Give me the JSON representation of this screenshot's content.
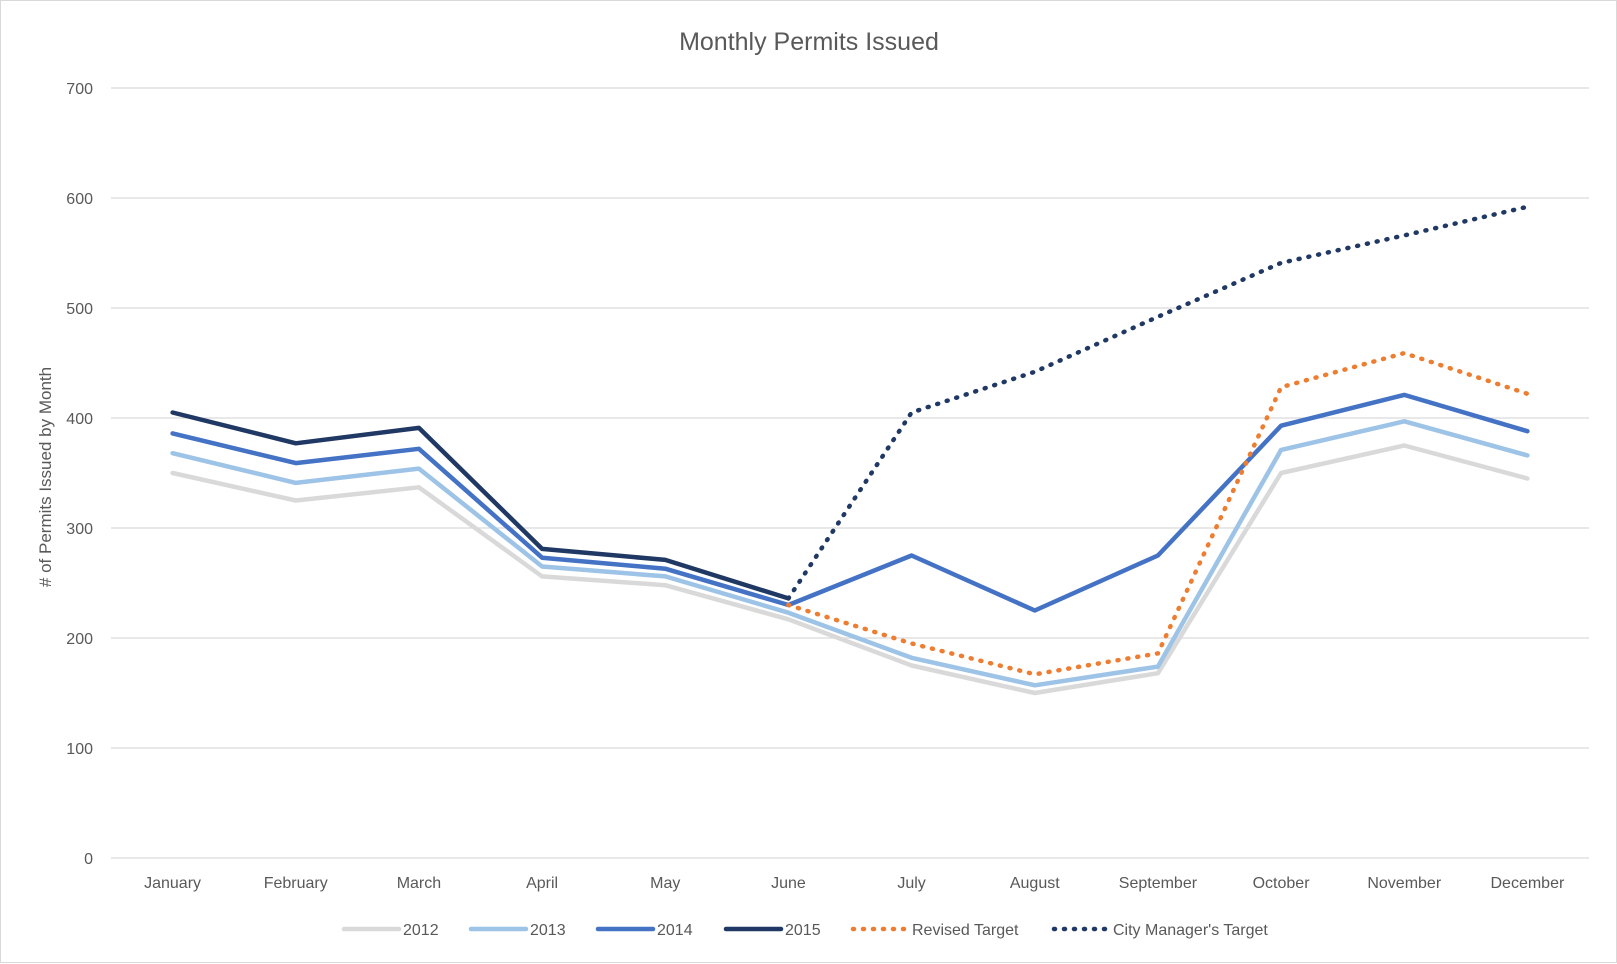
{
  "chart_data": {
    "type": "line",
    "title": "Monthly Permits Issued",
    "xlabel": "",
    "ylabel": "# of Permits Issued by Month",
    "ylim": [
      0,
      700
    ],
    "yticks": [
      0,
      100,
      200,
      300,
      400,
      500,
      600,
      700
    ],
    "grid": true,
    "legend_position": "bottom",
    "categories": [
      "January",
      "February",
      "March",
      "April",
      "May",
      "June",
      "July",
      "August",
      "September",
      "October",
      "November",
      "December"
    ],
    "series": [
      {
        "name": "2012",
        "color": "#d9d9d9",
        "style": "solid",
        "values": [
          350,
          325,
          337,
          256,
          248,
          217,
          175,
          150,
          168,
          350,
          375,
          345
        ]
      },
      {
        "name": "2013",
        "color": "#9dc3e6",
        "style": "solid",
        "values": [
          368,
          341,
          354,
          265,
          256,
          223,
          182,
          157,
          174,
          371,
          397,
          366
        ]
      },
      {
        "name": "2014",
        "color": "#4472c4",
        "style": "solid",
        "values": [
          386,
          359,
          372,
          273,
          263,
          230,
          275,
          225,
          275,
          393,
          421,
          388
        ]
      },
      {
        "name": "2015",
        "color": "#203864",
        "style": "solid",
        "values": [
          405,
          377,
          391,
          281,
          271,
          236,
          null,
          null,
          null,
          null,
          null,
          null
        ]
      },
      {
        "name": "Revised Target",
        "color": "#ed7d31",
        "style": "dotted",
        "values": [
          null,
          null,
          null,
          null,
          null,
          230,
          195,
          167,
          186,
          428,
          459,
          422
        ]
      },
      {
        "name": "City Manager's Target",
        "color": "#203864",
        "style": "dotted",
        "values": [
          null,
          null,
          null,
          null,
          null,
          236,
          405,
          442,
          492,
          541,
          566,
          592
        ]
      }
    ]
  }
}
